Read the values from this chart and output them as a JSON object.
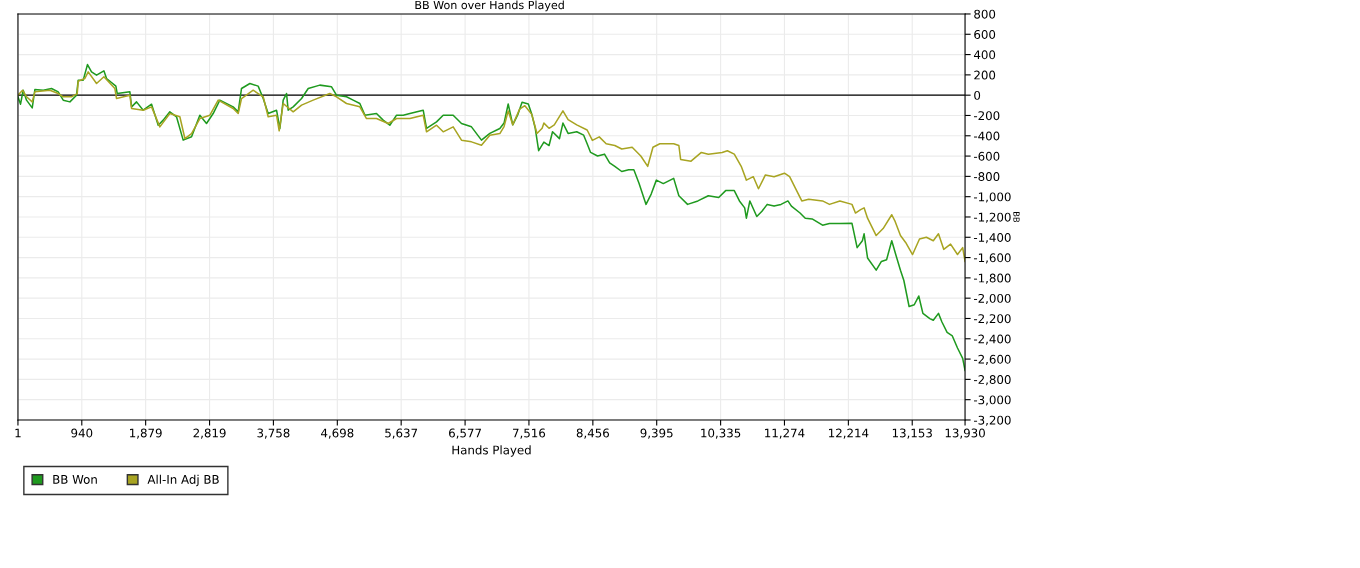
{
  "chart_data": {
    "type": "line",
    "title": "BB Won over Hands Played",
    "xlabel": "Hands Played",
    "ylabel": "BB",
    "xlim": [
      1,
      13930
    ],
    "xticks": [
      1,
      940,
      {
        "value": 1879,
        "label": "1,879"
      },
      {
        "value": 2819,
        "label": "2,819"
      },
      {
        "value": 3758,
        "label": "3,758"
      },
      {
        "value": 4698,
        "label": "4,698"
      },
      {
        "value": 5637,
        "label": "5,637"
      },
      {
        "value": 6577,
        "label": "6,577"
      },
      {
        "value": 7516,
        "label": "7,516"
      },
      {
        "value": 8456,
        "label": "8,456"
      },
      {
        "value": 9395,
        "label": "9,395"
      },
      {
        "value": 10335,
        "label": "10,335"
      },
      {
        "value": 11274,
        "label": "11,274"
      },
      {
        "value": 12214,
        "label": "12,214"
      },
      {
        "value": 13153,
        "label": "13,153"
      },
      {
        "value": 13930,
        "label": "13,930"
      }
    ],
    "ylim": [
      -3200,
      800
    ],
    "yticks": [
      800,
      600,
      400,
      200,
      0,
      -200,
      -400,
      -600,
      -800,
      {
        "value": -1000,
        "label": "-1,000"
      },
      {
        "value": -1200,
        "label": "-1,200"
      },
      {
        "value": -1400,
        "label": "-1,400"
      },
      {
        "value": -1600,
        "label": "-1,600"
      },
      {
        "value": -1800,
        "label": "-1,800"
      },
      {
        "value": -2000,
        "label": "-2,000"
      },
      {
        "value": -2200,
        "label": "-2,200"
      },
      {
        "value": -2400,
        "label": "-2,400"
      },
      {
        "value": -2600,
        "label": "-2,600"
      },
      {
        "value": -2800,
        "label": "-2,800"
      },
      {
        "value": -3000,
        "label": "-3,000"
      },
      {
        "value": -3200,
        "label": "-3,200"
      }
    ],
    "grid": true,
    "legend": "bottom left",
    "marker": "none",
    "line_style": "solid",
    "ref_lines": [
      {
        "axis": "y",
        "value": 0,
        "color": "#000000"
      }
    ],
    "series": [
      {
        "name": "BB Won",
        "color": "#1f9a1f",
        "x": [
          1,
          39,
          78,
          127,
          211,
          250,
          373,
          495,
          593,
          667,
          765,
          863,
          887,
          961,
          1024,
          1083,
          1157,
          1265,
          1304,
          1441,
          1461,
          1647,
          1672,
          1745,
          1843,
          1966,
          2064,
          2137,
          2235,
          2333,
          2431,
          2554,
          2676,
          2774,
          2872,
          2970,
          3166,
          3240,
          3289,
          3412,
          3534,
          3608,
          3681,
          3804,
          3853,
          3902,
          3951,
          3975,
          4049,
          4172,
          4270,
          4441,
          4613,
          4686,
          4833,
          4931,
          5029,
          5103,
          5274,
          5372,
          5470,
          5569,
          5667,
          5765,
          5961,
          6010,
          6157,
          6255,
          6402,
          6524,
          6671,
          6818,
          6941,
          7088,
          7150,
          7211,
          7278,
          7354,
          7415,
          7507,
          7558,
          7609,
          7659,
          7736,
          7812,
          7863,
          7965,
          8016,
          8092,
          8219,
          8321,
          8372,
          8423,
          8525,
          8627,
          8703,
          8779,
          8881,
          8983,
          9059,
          9136,
          9238,
          9314,
          9390,
          9492,
          9645,
          9721,
          9849,
          10001,
          10154,
          10307,
          10409,
          10536,
          10612,
          10689,
          10714,
          10765,
          10867,
          10943,
          11020,
          11121,
          11223,
          11325,
          11376,
          11503,
          11580,
          11681,
          11834,
          11936,
          12089,
          12267,
          12343,
          12420,
          12445,
          12496,
          12623,
          12700,
          12776,
          12852,
          12903,
          12980,
          13030,
          13107,
          13183,
          13249,
          13310,
          13412,
          13463,
          13539,
          13590,
          13666,
          13743,
          13819,
          13895,
          13930
        ],
        "values": [
          -16,
          -89,
          49,
          -49,
          -125,
          56,
          49,
          66,
          33,
          -49,
          -66,
          0,
          148,
          148,
          302,
          230,
          197,
          240,
          164,
          89,
          16,
          33,
          -115,
          -66,
          -148,
          -89,
          -296,
          -246,
          -164,
          -213,
          -443,
          -410,
          -197,
          -279,
          -181,
          -49,
          -115,
          -164,
          66,
          115,
          89,
          -33,
          -181,
          -148,
          -328,
          -49,
          16,
          -148,
          -115,
          -33,
          66,
          99,
          82,
          0,
          -16,
          -49,
          -82,
          -197,
          -181,
          -246,
          -296,
          -197,
          -197,
          -181,
          -148,
          -328,
          -263,
          -197,
          -197,
          -279,
          -312,
          -443,
          -377,
          -328,
          -275,
          -87,
          -292,
          -189,
          -70,
          -87,
          -189,
          -326,
          -547,
          -462,
          -496,
          -360,
          -428,
          -275,
          -377,
          -360,
          -394,
          -479,
          -564,
          -599,
          -581,
          -667,
          -701,
          -752,
          -735,
          -735,
          -871,
          -1076,
          -974,
          -837,
          -871,
          -820,
          -991,
          -1076,
          -1042,
          -991,
          -1008,
          -940,
          -940,
          -1042,
          -1110,
          -1212,
          -1042,
          -1195,
          -1144,
          -1076,
          -1093,
          -1076,
          -1042,
          -1093,
          -1161,
          -1212,
          -1219,
          -1281,
          -1264,
          -1264,
          -1263,
          -1502,
          -1434,
          -1366,
          -1604,
          -1724,
          -1638,
          -1621,
          -1434,
          -1553,
          -1724,
          -1826,
          -2082,
          -2065,
          -1979,
          -2150,
          -2201,
          -2218,
          -2150,
          -2235,
          -2337,
          -2372,
          -2491,
          -2593,
          -2712
        ]
      },
      {
        "name": "All-In Adj BB",
        "color": "#a8a422",
        "x": [
          1,
          69,
          127,
          211,
          250,
          471,
          593,
          667,
          789,
          873,
          887,
          985,
          1034,
          1157,
          1265,
          1426,
          1451,
          1647,
          1672,
          1843,
          1966,
          2088,
          2235,
          2382,
          2456,
          2554,
          2676,
          2824,
          2946,
          3166,
          3240,
          3289,
          3461,
          3534,
          3608,
          3681,
          3804,
          3843,
          3902,
          4049,
          4172,
          4343,
          4588,
          4686,
          4833,
          5029,
          5127,
          5274,
          5446,
          5569,
          5765,
          5961,
          6010,
          6157,
          6255,
          6402,
          6524,
          6671,
          6818,
          6941,
          7088,
          7150,
          7211,
          7278,
          7379,
          7456,
          7558,
          7634,
          7710,
          7736,
          7812,
          7889,
          8016,
          8092,
          8219,
          8372,
          8449,
          8550,
          8652,
          8779,
          8881,
          9034,
          9161,
          9263,
          9340,
          9441,
          9645,
          9721,
          9747,
          9900,
          10052,
          10154,
          10358,
          10434,
          10536,
          10638,
          10714,
          10816,
          10892,
          10994,
          11121,
          11274,
          11350,
          11427,
          11529,
          11630,
          11834,
          11936,
          12089,
          12267,
          12318,
          12394,
          12445,
          12496,
          12623,
          12725,
          12852,
          12903,
          12980,
          13056,
          13158,
          13260,
          13361,
          13463,
          13539,
          13616,
          13717,
          13819,
          13895,
          13930
        ],
        "values": [
          0,
          49,
          -16,
          -66,
          33,
          49,
          16,
          -16,
          -16,
          16,
          138,
          164,
          230,
          115,
          181,
          66,
          -33,
          0,
          -131,
          -148,
          -115,
          -312,
          -181,
          -213,
          -427,
          -378,
          -230,
          -197,
          -49,
          -131,
          -181,
          -33,
          49,
          16,
          -16,
          -213,
          -197,
          -351,
          -82,
          -164,
          -98,
          -49,
          16,
          -16,
          -82,
          -115,
          -230,
          -230,
          -279,
          -230,
          -230,
          -197,
          -361,
          -296,
          -361,
          -312,
          -443,
          -460,
          -493,
          -394,
          -378,
          -309,
          -155,
          -292,
          -138,
          -104,
          -189,
          -377,
          -326,
          -275,
          -326,
          -292,
          -155,
          -240,
          -292,
          -343,
          -445,
          -411,
          -479,
          -496,
          -530,
          -513,
          -599,
          -701,
          -513,
          -479,
          -479,
          -496,
          -633,
          -650,
          -564,
          -581,
          -564,
          -547,
          -581,
          -701,
          -837,
          -803,
          -922,
          -786,
          -803,
          -769,
          -803,
          -905,
          -1042,
          -1025,
          -1042,
          -1076,
          -1042,
          -1076,
          -1161,
          -1127,
          -1110,
          -1212,
          -1383,
          -1314,
          -1178,
          -1246,
          -1383,
          -1451,
          -1570,
          -1417,
          -1400,
          -1434,
          -1366,
          -1519,
          -1468,
          -1570,
          -1502,
          -1638
        ]
      }
    ]
  }
}
